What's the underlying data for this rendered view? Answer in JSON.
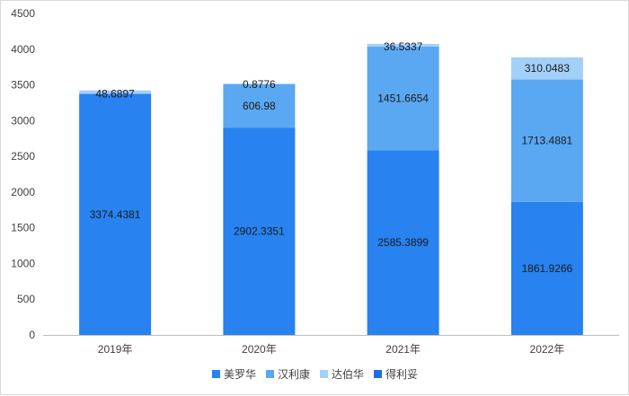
{
  "chart_data": {
    "type": "bar",
    "stacked": true,
    "title": "",
    "xlabel": "",
    "ylabel": "",
    "ylim": [
      0,
      4500
    ],
    "y_ticks": [
      "0",
      "500",
      "1000",
      "1500",
      "2000",
      "2500",
      "3000",
      "3500",
      "4000",
      "4500"
    ],
    "categories": [
      "2019年",
      "2020年",
      "2021年",
      "2022年"
    ],
    "series": [
      {
        "name": "美罗华",
        "color": "#2882f0",
        "values": [
          3374.4381,
          2902.3351,
          2585.3899,
          1861.9266
        ],
        "labels": [
          "3374.4381",
          "2902.3351",
          "2585.3899",
          "1861.9266"
        ]
      },
      {
        "name": "汉利康",
        "color": "#5aa8f2",
        "values": [
          0,
          606.98,
          1451.6654,
          1713.4881
        ],
        "labels": [
          "",
          "606.98",
          "1451.6654",
          "1713.4881"
        ]
      },
      {
        "name": "达伯华",
        "color": "#a3d0f8",
        "values": [
          48.6897,
          0.8776,
          36.5337,
          310.0483
        ],
        "labels": [
          "48.6897",
          "0.8776",
          "36.5337",
          "310.0483"
        ]
      },
      {
        "name": "得利妥",
        "color": "#1c6fe0",
        "values": [
          0,
          0,
          0,
          0
        ],
        "labels": [
          "",
          "",
          "",
          ""
        ]
      }
    ],
    "legend_position": "bottom",
    "grid": false
  }
}
